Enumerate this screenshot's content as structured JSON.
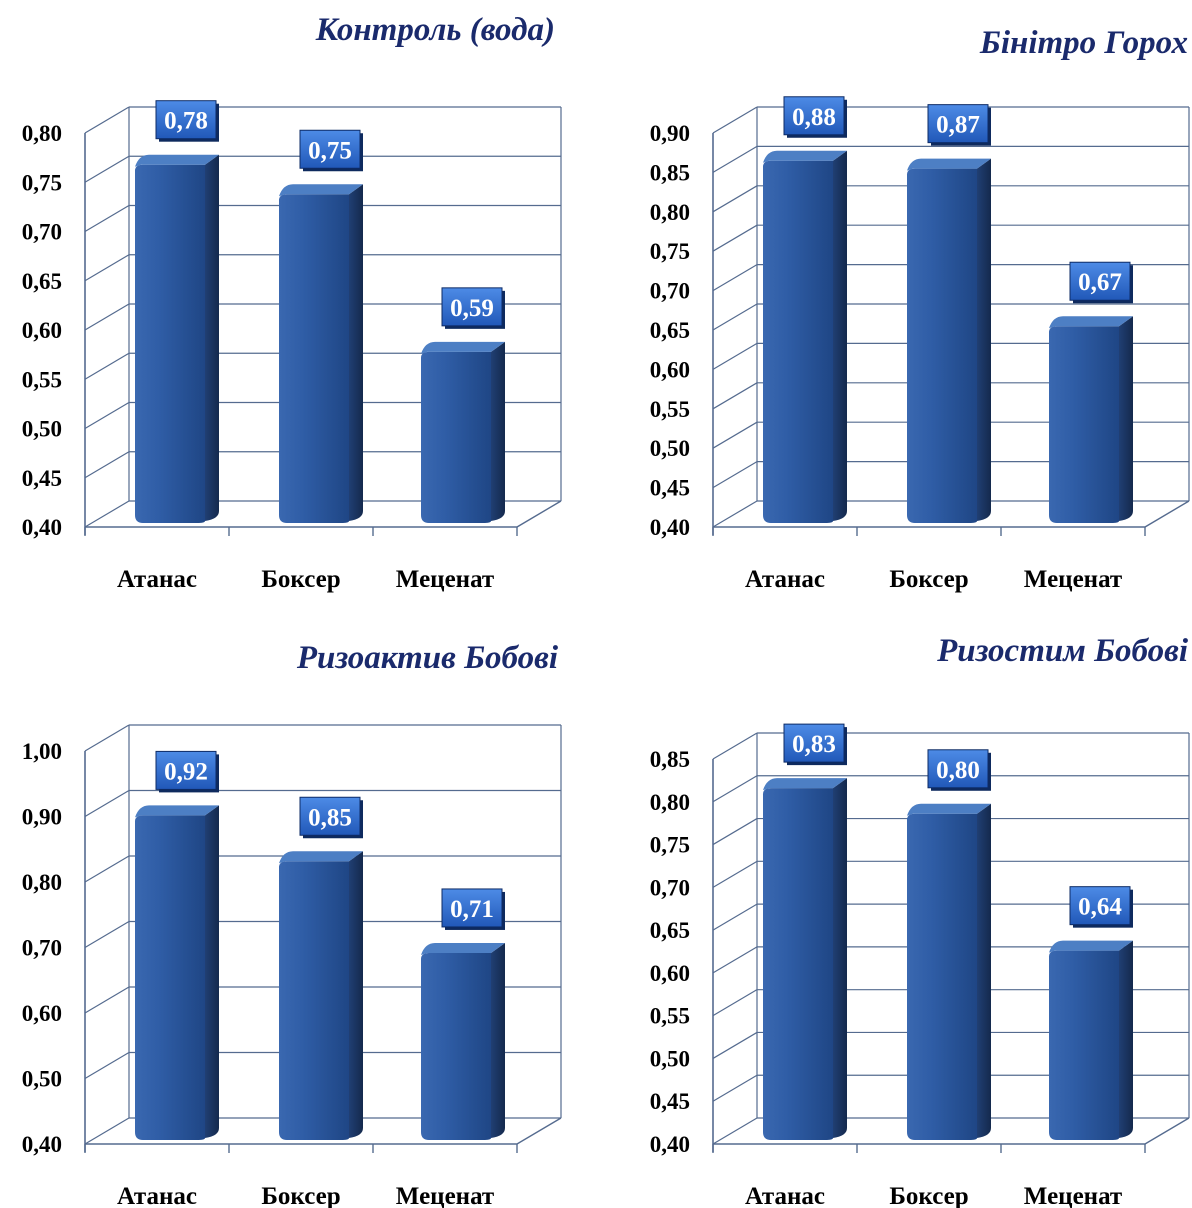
{
  "colors": {
    "bar_front": "#2c5aa0",
    "bar_side": "#1a3664",
    "bar_top": "#4d7fc4",
    "label_bg": "#2e6fd1",
    "grid": "#556b8f",
    "title": "#1a2a6c"
  },
  "chart_data": [
    {
      "type": "bar",
      "title": "Контроль (вода)",
      "categories": [
        "Атанас",
        "Боксер",
        "Меценат"
      ],
      "values": [
        0.78,
        0.75,
        0.59
      ],
      "value_labels": [
        "0,78",
        "0,75",
        "0,59"
      ],
      "ylim": [
        0.4,
        0.8
      ],
      "yticks": [
        "0,40",
        "0,45",
        "0,50",
        "0,55",
        "0,60",
        "0,65",
        "0,70",
        "0,75",
        "0,80"
      ],
      "grid": true
    },
    {
      "type": "bar",
      "title": "Бінітро Горох",
      "categories": [
        "Атанас",
        "Боксер",
        "Меценат"
      ],
      "values": [
        0.88,
        0.87,
        0.67
      ],
      "value_labels": [
        "0,88",
        "0,87",
        "0,67"
      ],
      "ylim": [
        0.4,
        0.9
      ],
      "yticks": [
        "0,40",
        "0,45",
        "0,50",
        "0,55",
        "0,60",
        "0,65",
        "0,70",
        "0,75",
        "0,80",
        "0,85",
        "0,90"
      ],
      "grid": true
    },
    {
      "type": "bar",
      "title": "Ризоактив Бобові",
      "categories": [
        "Атанас",
        "Боксер",
        "Меценат"
      ],
      "values": [
        0.92,
        0.85,
        0.71
      ],
      "value_labels": [
        "0,92",
        "0,85",
        "0,71"
      ],
      "ylim": [
        0.4,
        1.0
      ],
      "yticks": [
        "0,40",
        "0,50",
        "0,60",
        "0,70",
        "0,80",
        "0,90",
        "1,00"
      ],
      "grid": true
    },
    {
      "type": "bar",
      "title": "Ризостим Бобові",
      "categories": [
        "Атанас",
        "Боксер",
        "Меценат"
      ],
      "values": [
        0.83,
        0.8,
        0.64
      ],
      "value_labels": [
        "0,83",
        "0,80",
        "0,64"
      ],
      "ylim": [
        0.4,
        0.85
      ],
      "yticks": [
        "0,40",
        "0,45",
        "0,50",
        "0,55",
        "0,60",
        "0,65",
        "0,70",
        "0,75",
        "0,80",
        "0,85"
      ],
      "grid": true
    }
  ]
}
